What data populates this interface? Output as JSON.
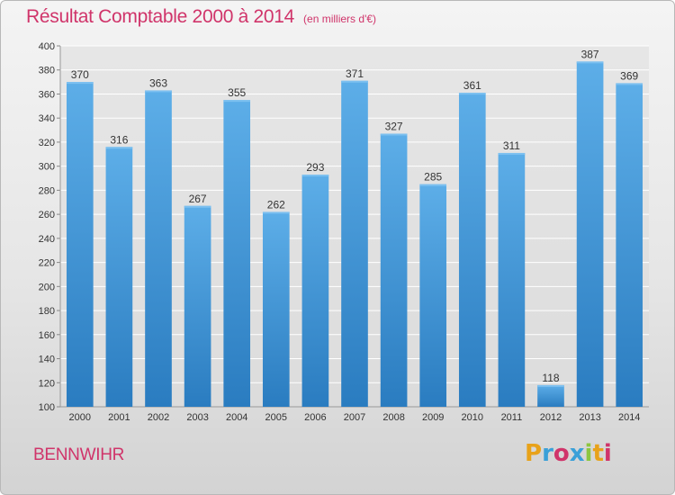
{
  "title": "Résultat Comptable 2000 à 2014",
  "subtitle": "(en milliers d'€)",
  "commune": "BENNWIHR",
  "logo": {
    "text": "Proxiti",
    "letters": [
      "P",
      "r",
      "o",
      "x",
      "i",
      "t",
      "i"
    ],
    "colors": [
      "#e8a21a",
      "#3aa0d8",
      "#d0346a",
      "#3aa0d8",
      "#8dc63f",
      "#e8a21a",
      "#d0346a"
    ]
  },
  "colors": {
    "title": "#d0346a",
    "bar_top": "#5daee8",
    "bar_bottom": "#2a7cc0",
    "grid": "#ffffff"
  },
  "chart_data": {
    "type": "bar",
    "categories": [
      "2000",
      "2001",
      "2002",
      "2003",
      "2004",
      "2005",
      "2006",
      "2007",
      "2008",
      "2009",
      "2010",
      "2011",
      "2012",
      "2013",
      "2014"
    ],
    "values": [
      370,
      316,
      363,
      267,
      355,
      262,
      293,
      371,
      327,
      285,
      361,
      311,
      118,
      387,
      369
    ],
    "ylim": [
      100,
      400
    ],
    "yticks": [
      100,
      120,
      140,
      160,
      180,
      200,
      220,
      240,
      260,
      280,
      300,
      320,
      340,
      360,
      380,
      400
    ],
    "grid": true,
    "data_labels": true
  }
}
